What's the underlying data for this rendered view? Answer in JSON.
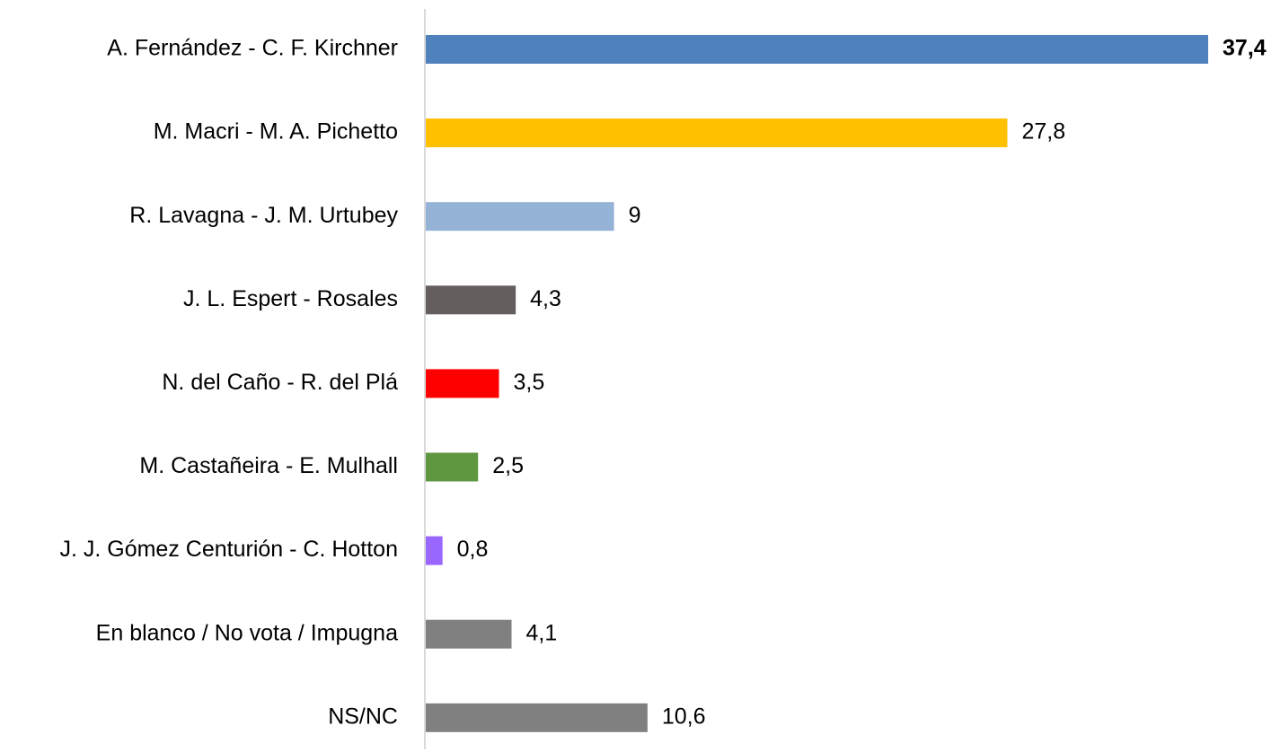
{
  "chart_data": {
    "type": "barh",
    "categories": [
      "A. Fernández - C. F. Kirchner",
      "M. Macri - M. A. Pichetto",
      "R. Lavagna - J. M. Urtubey",
      "J. L. Espert - Rosales",
      "N. del Caño - R. del Plá",
      "M. Castañeira - E. Mulhall",
      "J. J. Gómez Centurión - C. Hotton",
      "En blanco / No vota / Impugna",
      "NS/NC"
    ],
    "values": [
      37.4,
      27.8,
      9,
      4.3,
      3.5,
      2.5,
      0.8,
      4.1,
      10.6
    ],
    "value_labels": [
      "37,4",
      "27,8",
      "9",
      "4,3",
      "3,5",
      "2,5",
      "0,8",
      "4,1",
      "10,6"
    ],
    "colors": [
      "#4f81bd",
      "#ffc000",
      "#95b3d7",
      "#645f5e",
      "#ff0000",
      "#5f9640",
      "#9966ff",
      "#808080",
      "#808080"
    ]
  }
}
